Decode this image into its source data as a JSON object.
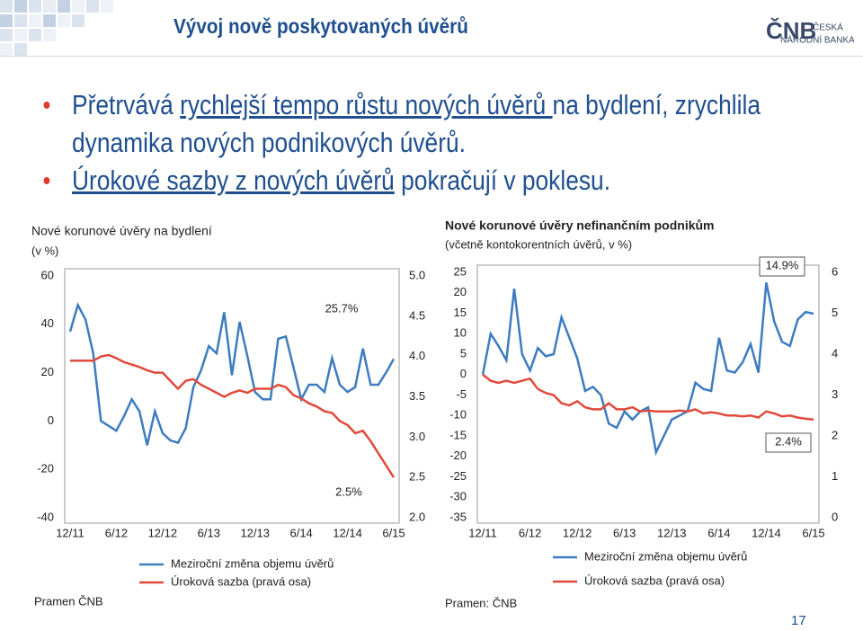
{
  "slide": {
    "title": "Vývoj nově poskytovaných úvěrů",
    "logo": {
      "mark": "ČNB",
      "name": [
        "ČESKÁ",
        "NÁRODNÍ BANKA"
      ]
    },
    "bullets": [
      [
        "Přetrvává ",
        "rychlejší tempo růstu nových úvěrů ",
        "na bydlení, zrychlila dynamika nových podnikových úvěrů."
      ],
      [
        "",
        "Úrokové sazby z nových úvěrů",
        " pokračují v poklesu."
      ]
    ],
    "page_number": 17
  },
  "chart_data": [
    {
      "type": "line",
      "title": "Nové korunové úvěry na bydlení",
      "subtitle": "(v %)",
      "source": "Pramen ČNB",
      "categories": [
        "12/11",
        null,
        null,
        null,
        null,
        null,
        "6/12",
        null,
        null,
        null,
        null,
        null,
        "12/12",
        null,
        null,
        null,
        null,
        null,
        "6/13",
        null,
        null,
        null,
        null,
        null,
        "12/13",
        null,
        null,
        null,
        null,
        null,
        "6/14",
        null,
        null,
        null,
        null,
        null,
        "12/14",
        null,
        null,
        null,
        null,
        null,
        "6/15"
      ],
      "series": [
        {
          "name": "Meziroční změna objemu úvěrů",
          "color": "#3d7cc0",
          "values": [
            37,
            48,
            42,
            28,
            0,
            -2,
            -4,
            2,
            9,
            4,
            -10,
            4,
            -5,
            -8,
            -9,
            -3,
            14,
            21,
            31,
            28,
            45,
            19,
            41,
            27,
            12,
            9,
            9,
            34,
            35,
            22,
            9,
            15,
            15,
            12,
            26,
            15,
            12,
            14,
            30,
            15,
            15,
            20,
            25.7
          ]
        },
        {
          "name": "Úroková sazba (pravá osa)",
          "color": "#e04a3c",
          "axis": "y2",
          "values": [
            3.95,
            3.95,
            3.95,
            3.95,
            4.0,
            4.02,
            3.98,
            3.93,
            3.9,
            3.87,
            3.83,
            3.8,
            3.8,
            3.7,
            3.6,
            3.7,
            3.72,
            3.65,
            3.6,
            3.55,
            3.5,
            3.55,
            3.58,
            3.55,
            3.6,
            3.6,
            3.6,
            3.65,
            3.62,
            3.52,
            3.48,
            3.42,
            3.38,
            3.32,
            3.3,
            3.2,
            3.15,
            3.05,
            3.08,
            2.95,
            2.8,
            2.65,
            2.5
          ]
        }
      ],
      "ylim": [
        -40,
        60
      ],
      "yticks": [
        -40,
        -20,
        0,
        20,
        40,
        60
      ],
      "y2lim": [
        2,
        5
      ],
      "y2ticks": [
        {
          "value": 2,
          "label": "2.0"
        },
        {
          "value": 2.5,
          "label": "2.5"
        },
        {
          "value": 3,
          "label": "3.0"
        },
        {
          "value": 3.5,
          "label": "3.5"
        },
        {
          "value": 4,
          "label": "4.0"
        },
        {
          "value": 4.5,
          "label": "4.5"
        },
        {
          "value": 5,
          "label": "5.0"
        }
      ],
      "annotations": [
        "25.7%",
        "2.5%"
      ],
      "grid": false
    },
    {
      "type": "line",
      "title": "Nové korunové úvěry nefinančním podnikům",
      "subtitle": "(včetně kontokorentních úvěrů, v %)",
      "source": "Pramen: ČNB",
      "categories": [
        "12/11",
        null,
        null,
        null,
        null,
        null,
        "6/12",
        null,
        null,
        null,
        null,
        null,
        "12/12",
        null,
        null,
        null,
        null,
        null,
        "6/13",
        null,
        null,
        null,
        null,
        null,
        "12/13",
        null,
        null,
        null,
        null,
        null,
        "6/14",
        null,
        null,
        null,
        null,
        null,
        "12/14",
        null,
        null,
        null,
        null,
        null,
        "6/15"
      ],
      "series": [
        {
          "name": "Meziroční změna objemu úvěrů",
          "color": "#3d7cc0",
          "values": [
            0,
            10,
            7,
            3.5,
            21,
            5,
            1,
            6.5,
            4.5,
            5,
            14,
            9,
            4,
            -4,
            -3,
            -5,
            -12,
            -13,
            -9,
            -11,
            -9,
            -8,
            -19,
            -15,
            -11,
            -10,
            -9,
            -2,
            -3.5,
            -4,
            9,
            1,
            0.5,
            3,
            7.5,
            0.5,
            22.5,
            13,
            8,
            7,
            13.5,
            15.3,
            14.9
          ]
        },
        {
          "name": "Úroková sazba (pravá osa)",
          "color": "#e04a3c",
          "axis": "y2",
          "values": [
            3.5,
            3.35,
            3.3,
            3.35,
            3.3,
            3.35,
            3.4,
            3.15,
            3.05,
            3.0,
            2.8,
            2.75,
            2.85,
            2.7,
            2.65,
            2.65,
            2.8,
            2.65,
            2.65,
            2.7,
            2.6,
            2.62,
            2.6,
            2.6,
            2.6,
            2.62,
            2.6,
            2.65,
            2.55,
            2.58,
            2.55,
            2.5,
            2.5,
            2.48,
            2.5,
            2.45,
            2.6,
            2.55,
            2.48,
            2.5,
            2.45,
            2.42,
            2.4
          ]
        }
      ],
      "ylim": [
        -35,
        25
      ],
      "yticks": [
        -35,
        -30,
        -25,
        -20,
        -15,
        -10,
        -5,
        0,
        5,
        10,
        15,
        20,
        25
      ],
      "y2lim": [
        0,
        6
      ],
      "y2ticks": [
        0,
        1,
        2,
        3,
        4,
        5,
        6
      ],
      "annotations": [
        "14.9%",
        "2.4%"
      ],
      "grid": false
    }
  ]
}
